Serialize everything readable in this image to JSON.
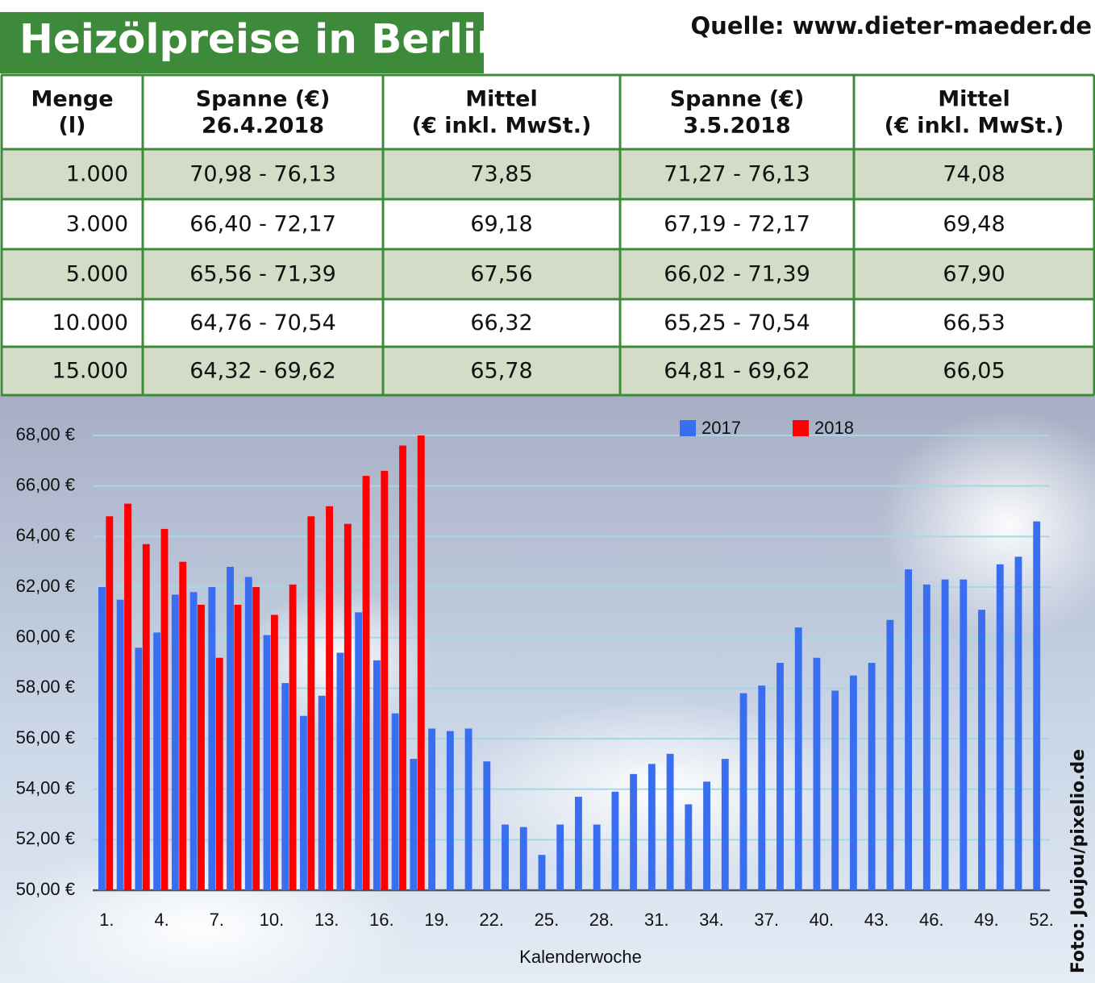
{
  "title": "Heizölpreise in Berlin",
  "source": "Quelle: www.dieter-maeder.de",
  "photo_credit": "Foto: Joujou/pixelio.de",
  "table": {
    "header": [
      [
        "Menge",
        "(l)"
      ],
      [
        "Spanne (€)",
        "26.4.2018"
      ],
      [
        "Mittel",
        "(€ inkl. MwSt.)"
      ],
      [
        "Spanne (€)",
        "3.5.2018"
      ],
      [
        "Mittel",
        "(€ inkl. MwSt.)"
      ]
    ],
    "rows": [
      [
        "1.000",
        "70,98 - 76,13",
        "73,85",
        "71,27 - 76,13",
        "74,08"
      ],
      [
        "3.000",
        "66,40 - 72,17",
        "69,18",
        "67,19 - 72,17",
        "69,48"
      ],
      [
        "5.000",
        "65,56 - 71,39",
        "67,56",
        "66,02 - 71,39",
        "67,90"
      ],
      [
        "10.000",
        "64,76 - 70,54",
        "66,32",
        "65,25 - 70,54",
        "66,53"
      ],
      [
        "15.000",
        "64,32 - 69,62",
        "65,78",
        "64,81 - 69,62",
        "66,05"
      ]
    ]
  },
  "chart_data": {
    "type": "bar",
    "x_label": "Kalenderwoche",
    "categories": [
      "1.",
      null,
      null,
      "4.",
      null,
      null,
      "7.",
      null,
      null,
      "10.",
      null,
      null,
      "13.",
      null,
      null,
      "16.",
      null,
      null,
      "19.",
      null,
      null,
      "22.",
      null,
      null,
      "25.",
      null,
      null,
      "28.",
      null,
      null,
      "31.",
      null,
      null,
      "34.",
      null,
      null,
      "37.",
      null,
      null,
      "40.",
      null,
      null,
      "43.",
      null,
      null,
      "46.",
      null,
      null,
      "49.",
      null,
      null,
      "52."
    ],
    "series": [
      {
        "name": "2017",
        "color": "#3a6ef0",
        "values": [
          62.0,
          61.5,
          59.6,
          60.2,
          61.7,
          61.8,
          62.0,
          62.8,
          62.4,
          60.1,
          58.2,
          56.9,
          57.7,
          59.4,
          61.0,
          59.1,
          57.0,
          55.2,
          56.4,
          56.3,
          56.4,
          55.1,
          52.6,
          52.5,
          51.4,
          52.6,
          53.7,
          52.6,
          53.9,
          54.6,
          55.0,
          55.4,
          53.4,
          54.3,
          55.2,
          57.8,
          58.1,
          59.0,
          60.4,
          59.2,
          57.9,
          58.5,
          59.0,
          60.7,
          62.7,
          62.1,
          62.3,
          62.3,
          61.1,
          62.9,
          63.2,
          64.6
        ]
      },
      {
        "name": "2018",
        "color": "#ff0000",
        "values": [
          64.8,
          65.3,
          63.7,
          64.3,
          63.0,
          61.3,
          59.2,
          61.3,
          62.0,
          60.9,
          62.1,
          64.8,
          65.2,
          64.5,
          66.4,
          66.6,
          67.6,
          68.0,
          null,
          null,
          null,
          null,
          null,
          null,
          null,
          null,
          null,
          null,
          null,
          null,
          null,
          null,
          null,
          null,
          null,
          null,
          null,
          null,
          null,
          null,
          null,
          null,
          null,
          null,
          null,
          null,
          null,
          null,
          null,
          null,
          null,
          null
        ]
      }
    ],
    "ylim": [
      50,
      68
    ],
    "yticks": [
      {
        "value": 50,
        "label": "50,00 €"
      },
      {
        "value": 52,
        "label": "52,00 €"
      },
      {
        "value": 54,
        "label": "54,00 €"
      },
      {
        "value": 56,
        "label": "56,00 €"
      },
      {
        "value": 58,
        "label": "58,00 €"
      },
      {
        "value": 60,
        "label": "60,00 €"
      },
      {
        "value": 62,
        "label": "62,00 €"
      },
      {
        "value": 64,
        "label": "64,00 €"
      },
      {
        "value": 66,
        "label": "66,00 €"
      },
      {
        "value": 68,
        "label": "68,00 €"
      }
    ],
    "grid": true,
    "legend": "top-right"
  }
}
